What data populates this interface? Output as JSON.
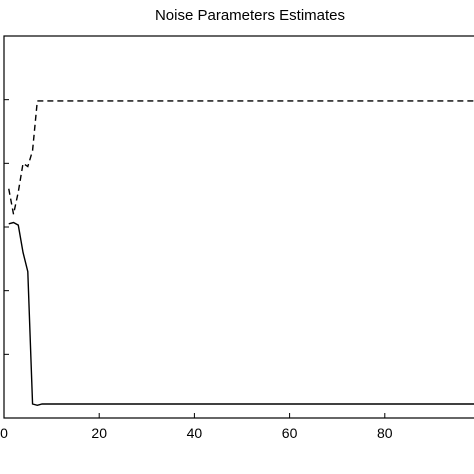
{
  "chart_data": {
    "type": "line",
    "title": "Noise Parameters Estimates",
    "xlabel": "",
    "ylabel": "",
    "xlim": [
      0,
      100
    ],
    "ylim": [
      0,
      6
    ],
    "x_ticks": [
      0,
      20,
      40,
      60,
      80
    ],
    "x_tick_labels": [
      "0",
      "20",
      "40",
      "60",
      "80"
    ],
    "y_ticks": [
      0,
      1,
      2,
      3,
      4,
      5
    ],
    "grid": false,
    "legend": "none",
    "series": [
      {
        "style": "dashed",
        "color": "#000000",
        "x": [
          1,
          2,
          3,
          4,
          5,
          6,
          7,
          100
        ],
        "y": [
          3.6,
          3.2,
          3.55,
          4.0,
          3.95,
          4.2,
          4.98,
          4.98
        ]
      },
      {
        "style": "solid",
        "color": "#000000",
        "x": [
          1,
          2,
          3,
          4,
          5,
          6,
          7,
          8,
          100
        ],
        "y": [
          3.05,
          3.07,
          3.03,
          2.6,
          2.3,
          0.22,
          0.2,
          0.22,
          0.22
        ]
      }
    ]
  }
}
